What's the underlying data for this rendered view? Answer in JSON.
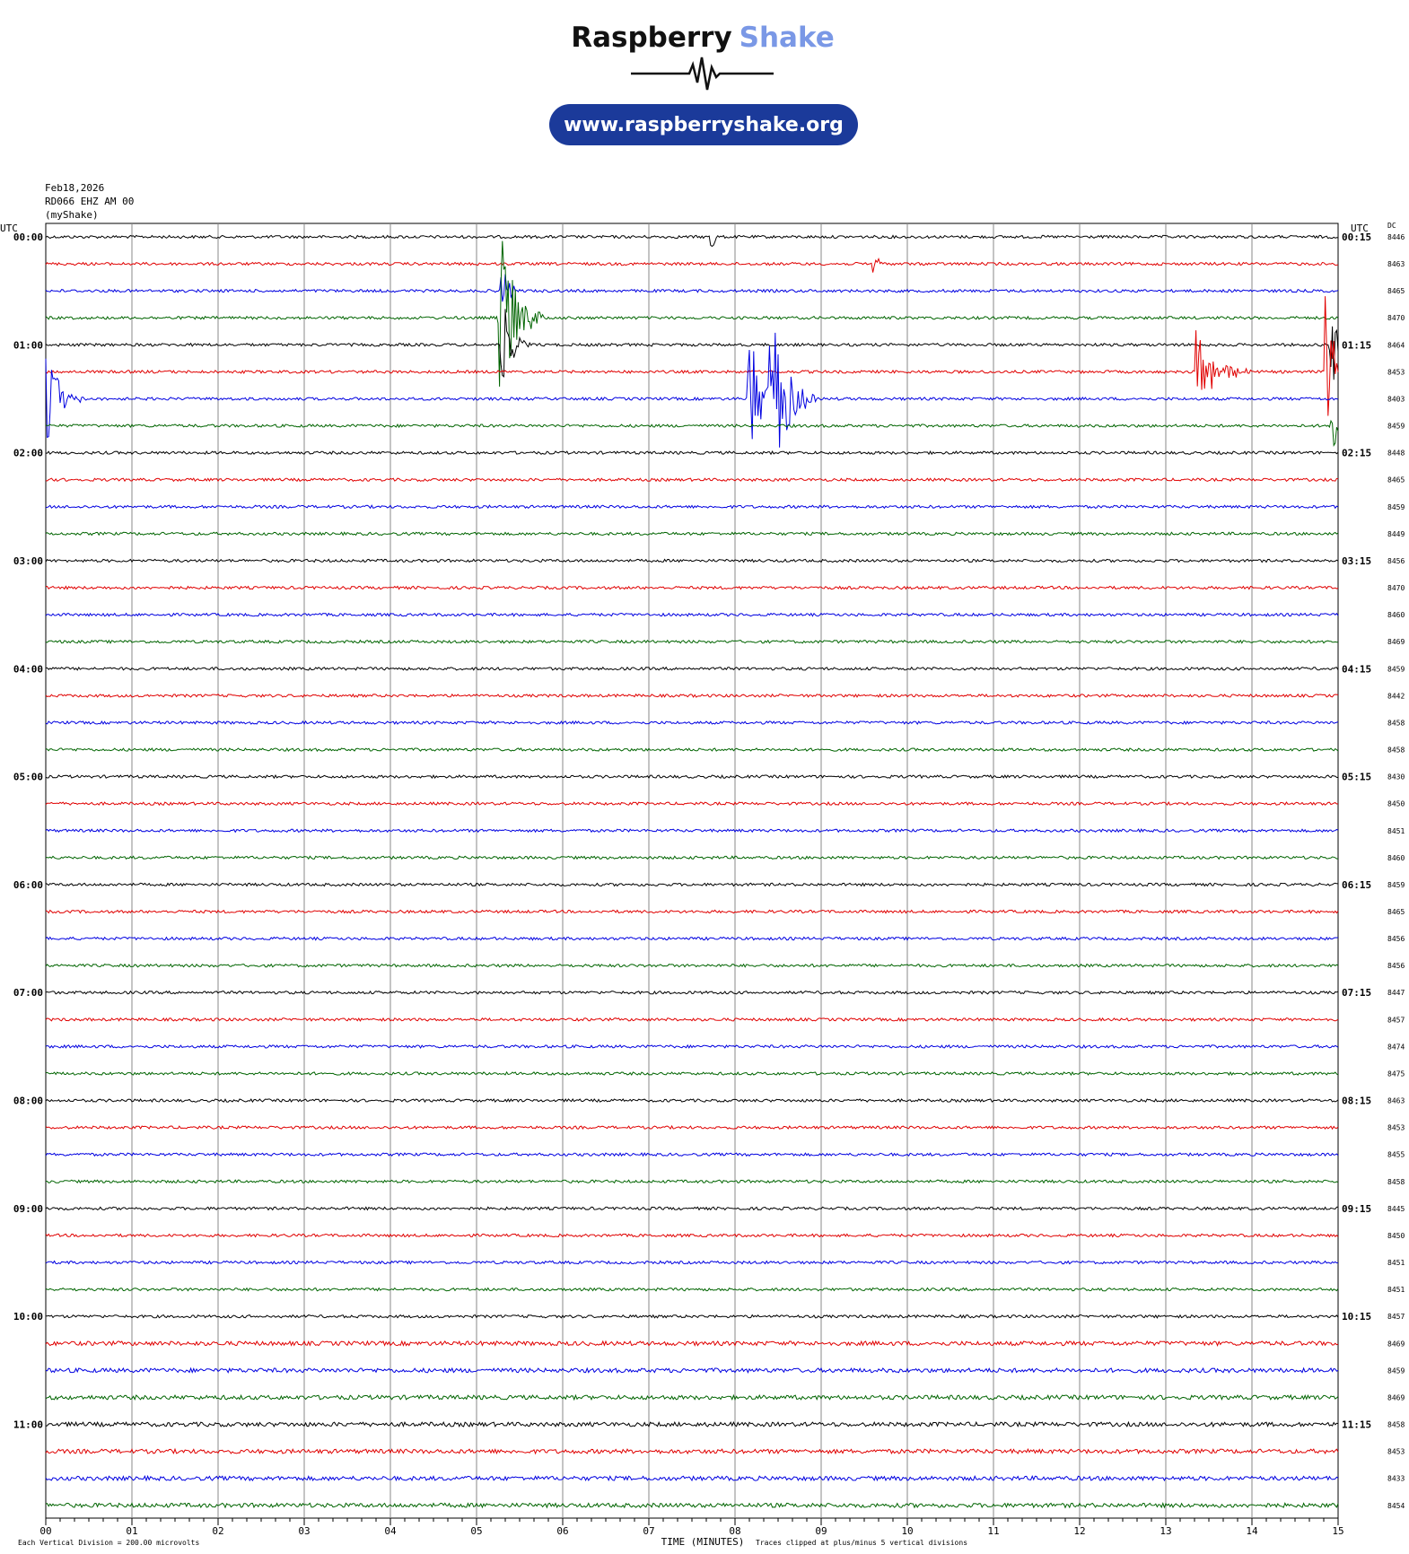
{
  "header": {
    "brand_first": "Raspberry",
    "brand_second": "Shake",
    "url": "www.raspberryshake.org"
  },
  "info": [
    "Feb18,2026",
    "RD066 EHZ AM 00",
    "(myShake)"
  ],
  "left_axis_title": "UTC",
  "right_axis_title": "UTC",
  "dc_title": "DC",
  "left_times": [
    "00:00",
    "01:00",
    "02:00",
    "03:00",
    "04:00",
    "05:00",
    "06:00",
    "07:00",
    "08:00",
    "09:00",
    "10:00",
    "11:00"
  ],
  "right_times": [
    "00:15",
    "01:15",
    "02:15",
    "03:15",
    "04:15",
    "05:15",
    "06:15",
    "07:15",
    "08:15",
    "09:15",
    "10:15",
    "11:15"
  ],
  "dc_values": [
    "8446",
    "8463",
    "8465",
    "8470",
    "8464",
    "8453",
    "8403",
    "8459",
    "8448",
    "8465",
    "8459",
    "8449",
    "8456",
    "8470",
    "8460",
    "8469",
    "8459",
    "8442",
    "8458",
    "8458",
    "8430",
    "8450",
    "8451",
    "8460",
    "8459",
    "8465",
    "8456",
    "8456",
    "8447",
    "8457",
    "8474",
    "8475",
    "8463",
    "8453",
    "8455",
    "8458",
    "8445",
    "8450",
    "8451",
    "8451",
    "8457",
    "8469",
    "8459",
    "8469",
    "8458",
    "8453",
    "8433",
    "8454"
  ],
  "x_ticks": [
    "00",
    "01",
    "02",
    "03",
    "04",
    "05",
    "06",
    "07",
    "08",
    "09",
    "10",
    "11",
    "12",
    "13",
    "14",
    "15"
  ],
  "x_label": "TIME (MINUTES)",
  "footer_left": "Each Vertical Division =  200.00 microvolts",
  "footer_right": "Traces clipped at plus/minus 5 vertical divisions"
}
